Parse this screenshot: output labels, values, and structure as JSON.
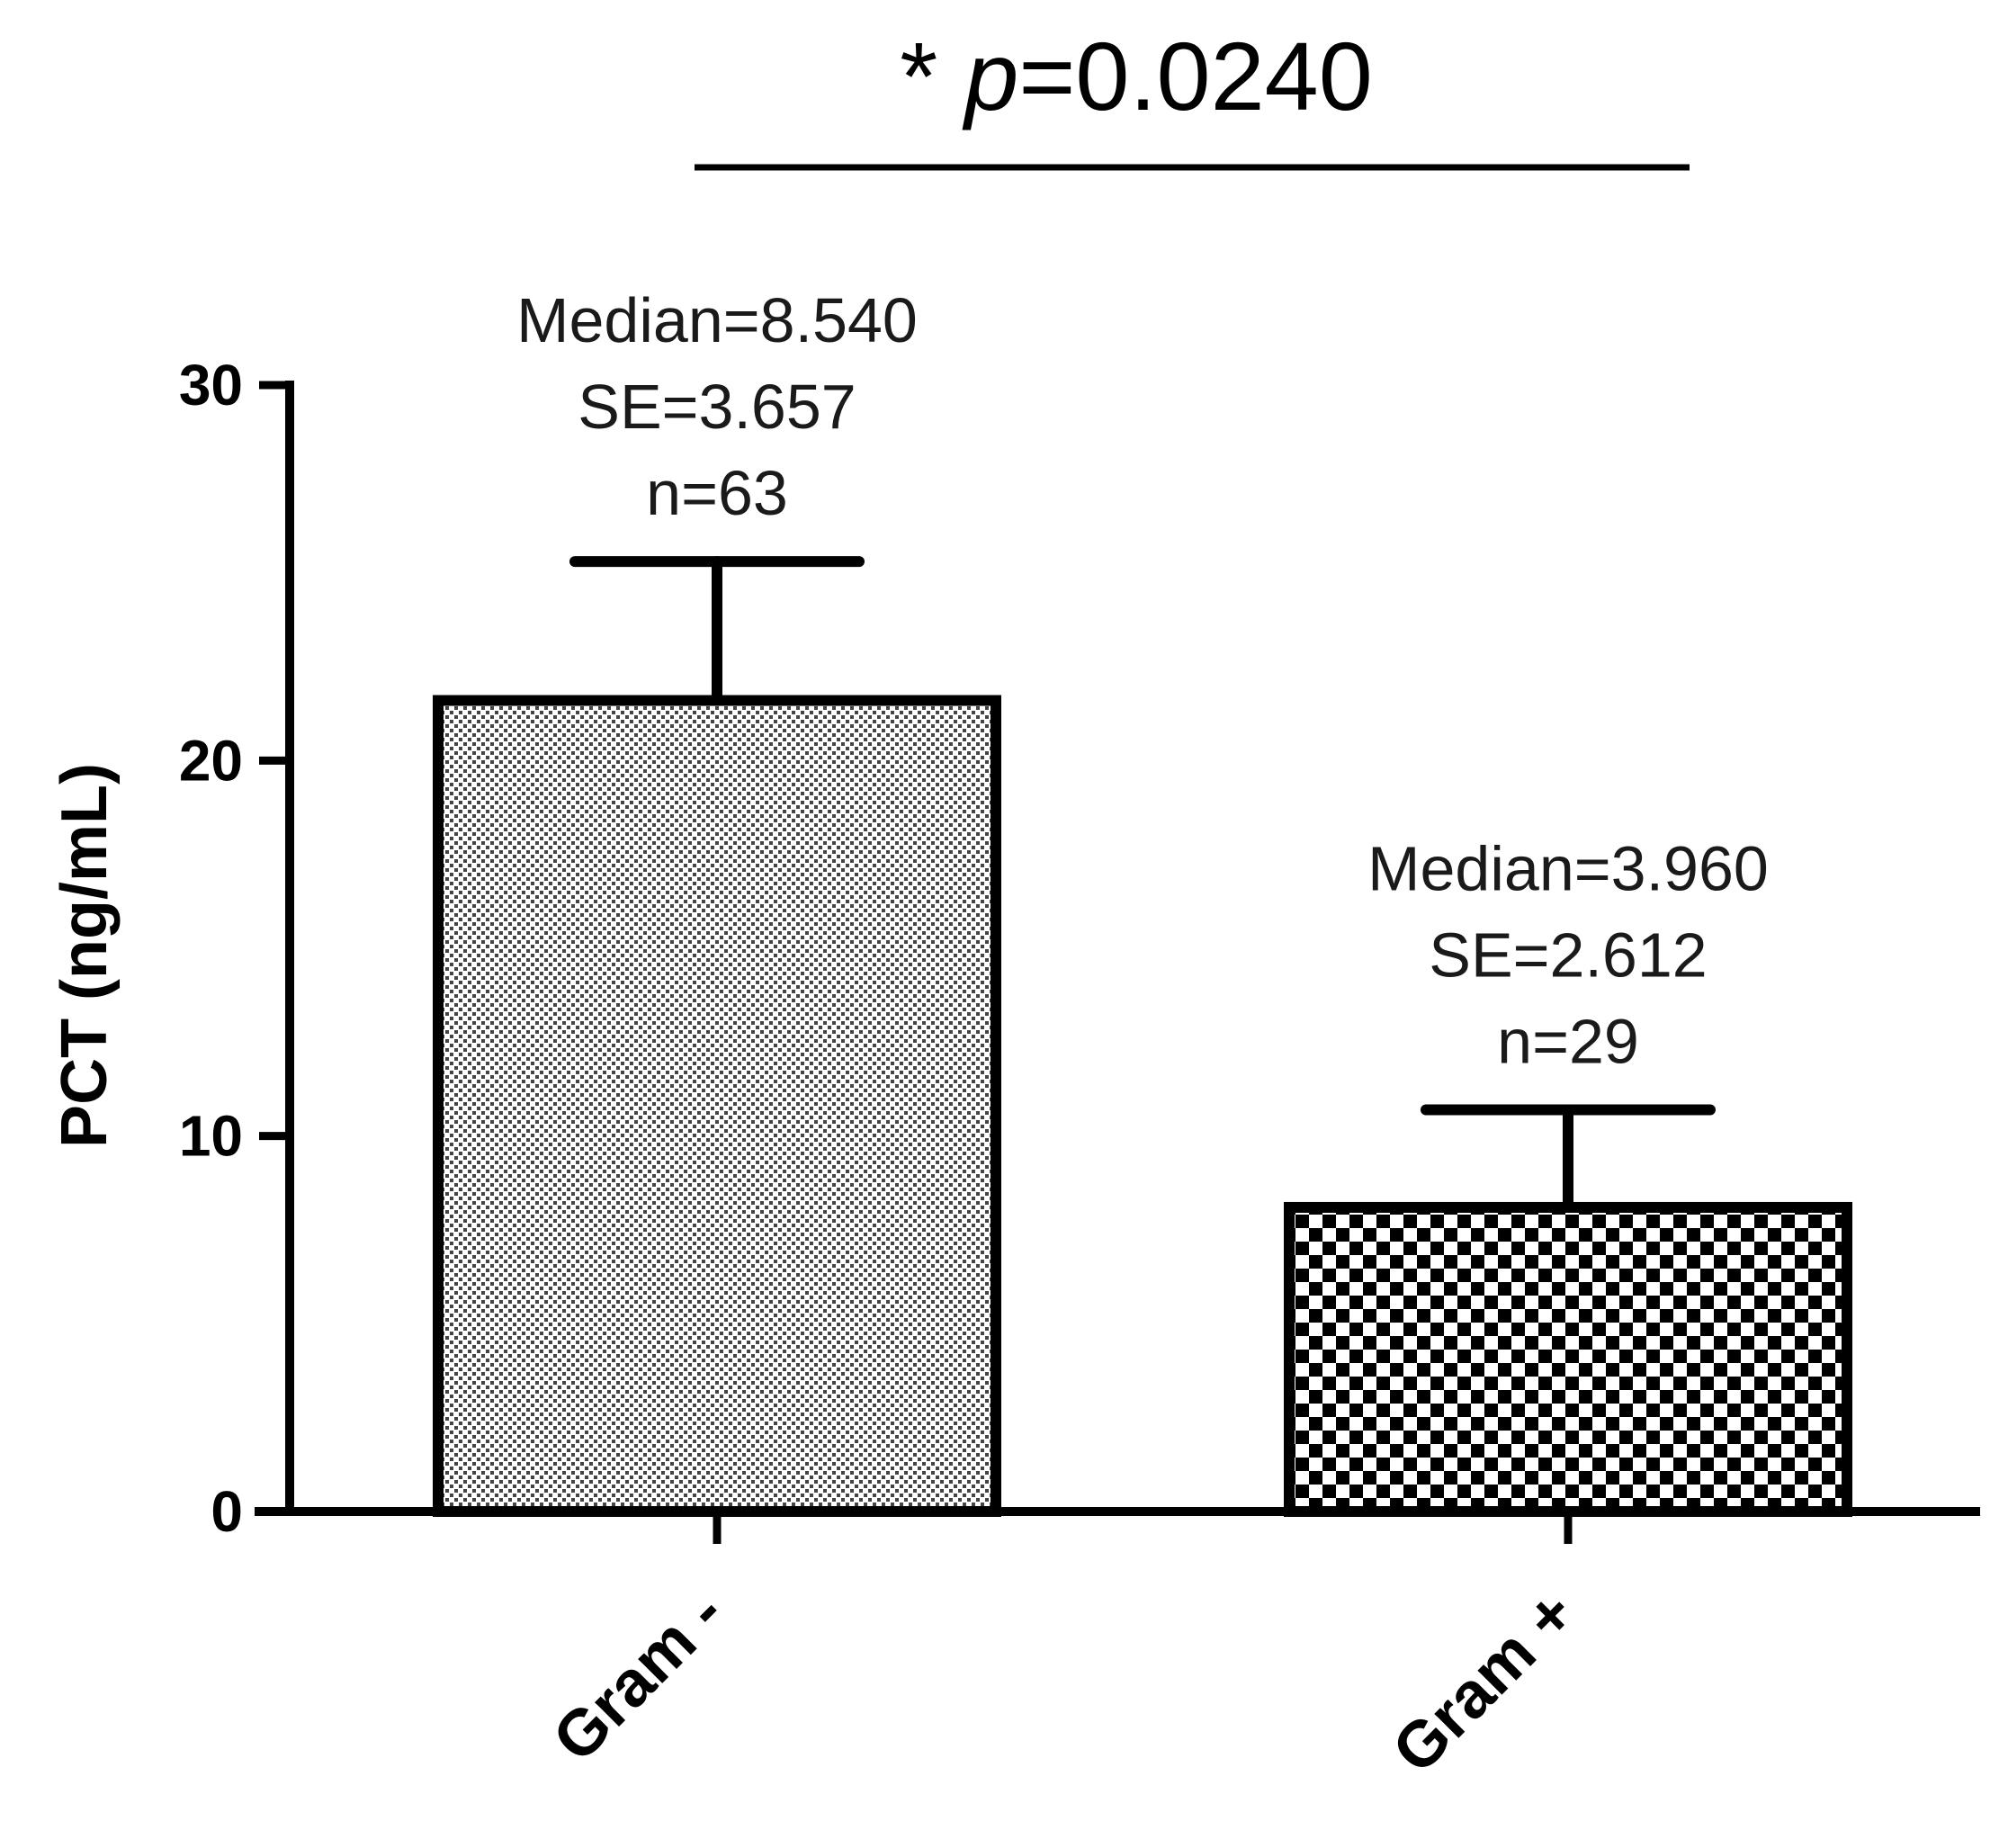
{
  "chart_data": {
    "type": "bar",
    "title": "",
    "xlabel": "",
    "ylabel": "PCT (ng/mL)",
    "ylim": [
      0,
      30
    ],
    "yticks": [
      0,
      10,
      20,
      30
    ],
    "ytick_labels": [
      "0",
      "10",
      "20",
      "30"
    ],
    "grid": false,
    "legend": "none",
    "categories": [
      "Gram -",
      "Gram +"
    ],
    "values": [
      21.6,
      8.1
    ],
    "error_upper": [
      25.3,
      10.7
    ],
    "patterns": [
      "fine-dots",
      "checkerboard"
    ],
    "annotations": [
      {
        "category": "Gram -",
        "lines": [
          "Median=8.540",
          "SE=3.657",
          "n=63"
        ]
      },
      {
        "category": "Gram +",
        "lines": [
          "Median=3.960",
          "SE=2.612",
          "n=29"
        ]
      }
    ],
    "significance": {
      "star": "* ",
      "p_symbol": "p",
      "p_value": "=0.0240",
      "between": [
        "Gram -",
        "Gram +"
      ]
    }
  }
}
